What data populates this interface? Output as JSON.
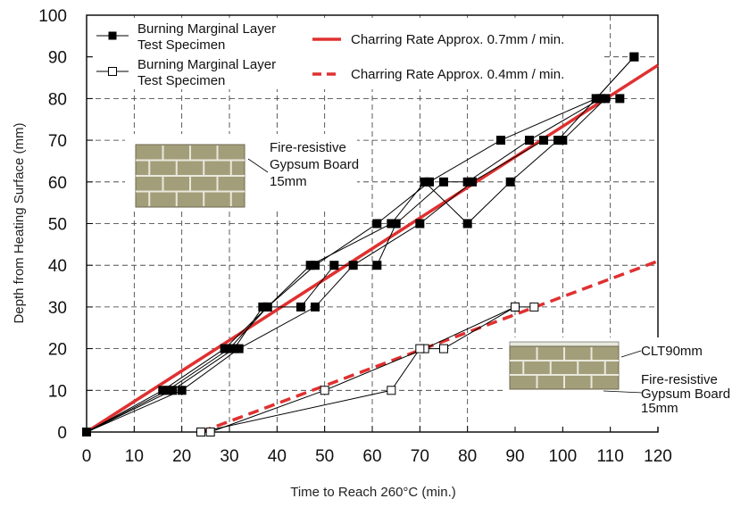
{
  "chart_data": {
    "type": "line",
    "xlabel": "Time to Reach 260°C (min.)",
    "ylabel": "Depth from Heating Surface (mm)",
    "xlim": [
      0,
      120
    ],
    "ylim": [
      0,
      100
    ],
    "x_ticks": [
      0,
      10,
      20,
      30,
      40,
      50,
      60,
      70,
      80,
      90,
      100,
      110,
      120
    ],
    "y_ticks": [
      0,
      10,
      20,
      30,
      40,
      50,
      60,
      70,
      80,
      90,
      100
    ],
    "grid": true,
    "legend_position": "top",
    "series": [
      {
        "name": "Burning Marginal Layer\nTest Specimen",
        "marker": "filled-square",
        "color": "#000000",
        "lines": [
          [
            [
              0,
              0
            ],
            [
              17,
              10
            ],
            [
              30,
              20
            ],
            [
              38,
              30
            ],
            [
              48,
              40
            ],
            [
              61,
              50
            ],
            [
              72,
              60
            ],
            [
              87,
              70
            ],
            [
              107,
              80
            ],
            [
              115,
              90
            ]
          ],
          [
            [
              0,
              0
            ],
            [
              18,
              10
            ],
            [
              31,
              20
            ],
            [
              37,
              30
            ],
            [
              45,
              30
            ],
            [
              52,
              40
            ],
            [
              61,
              40
            ],
            [
              65,
              50
            ],
            [
              75,
              60
            ],
            [
              80,
              60
            ],
            [
              93,
              70
            ],
            [
              108,
              80
            ],
            [
              112,
              80
            ]
          ],
          [
            [
              0,
              0
            ],
            [
              20,
              10
            ],
            [
              32,
              20
            ],
            [
              48,
              30
            ],
            [
              56,
              40
            ],
            [
              70,
              50
            ],
            [
              81,
              60
            ],
            [
              96,
              70
            ],
            [
              100,
              70
            ],
            [
              109,
              80
            ]
          ],
          [
            [
              0,
              0
            ],
            [
              16,
              10
            ],
            [
              29,
              20
            ],
            [
              38,
              30
            ],
            [
              47,
              40
            ],
            [
              64,
              50
            ],
            [
              71,
              60
            ],
            [
              80,
              50
            ],
            [
              89,
              60
            ],
            [
              99,
              70
            ],
            [
              115,
              90
            ]
          ]
        ]
      },
      {
        "name": "Burning Marginal Layer\nTest Specimen",
        "marker": "open-square",
        "color": "#000000",
        "lines": [
          [
            [
              26,
              0
            ],
            [
              50,
              10
            ],
            [
              71,
              20
            ],
            [
              90,
              30
            ],
            [
              94,
              30
            ]
          ],
          [
            [
              24,
              0
            ],
            [
              64,
              10
            ],
            [
              70,
              20
            ],
            [
              75,
              20
            ],
            [
              90,
              30
            ]
          ]
        ]
      },
      {
        "name": "Charring Rate Approx. 0.7mm / min.",
        "style": "solid",
        "color": "#e03030",
        "points": [
          [
            0,
            0
          ],
          [
            120,
            88
          ]
        ]
      },
      {
        "name": "Charring Rate Approx. 0.4mm / min.",
        "style": "dashed",
        "color": "#e03030",
        "points": [
          [
            24,
            0
          ],
          [
            120,
            41
          ]
        ]
      }
    ],
    "annotations": [
      {
        "text": "Fire-resistive\nGypsum Board\n15mm"
      },
      {
        "text": "CLT90mm"
      },
      {
        "text": "Fire-resistive\nGypsum Board\n15mm"
      }
    ]
  },
  "colors": {
    "line_red": "#e03030",
    "board_fill": "#a39e7a",
    "board_mortar": "#e9e8dc",
    "grid": "#333333"
  }
}
